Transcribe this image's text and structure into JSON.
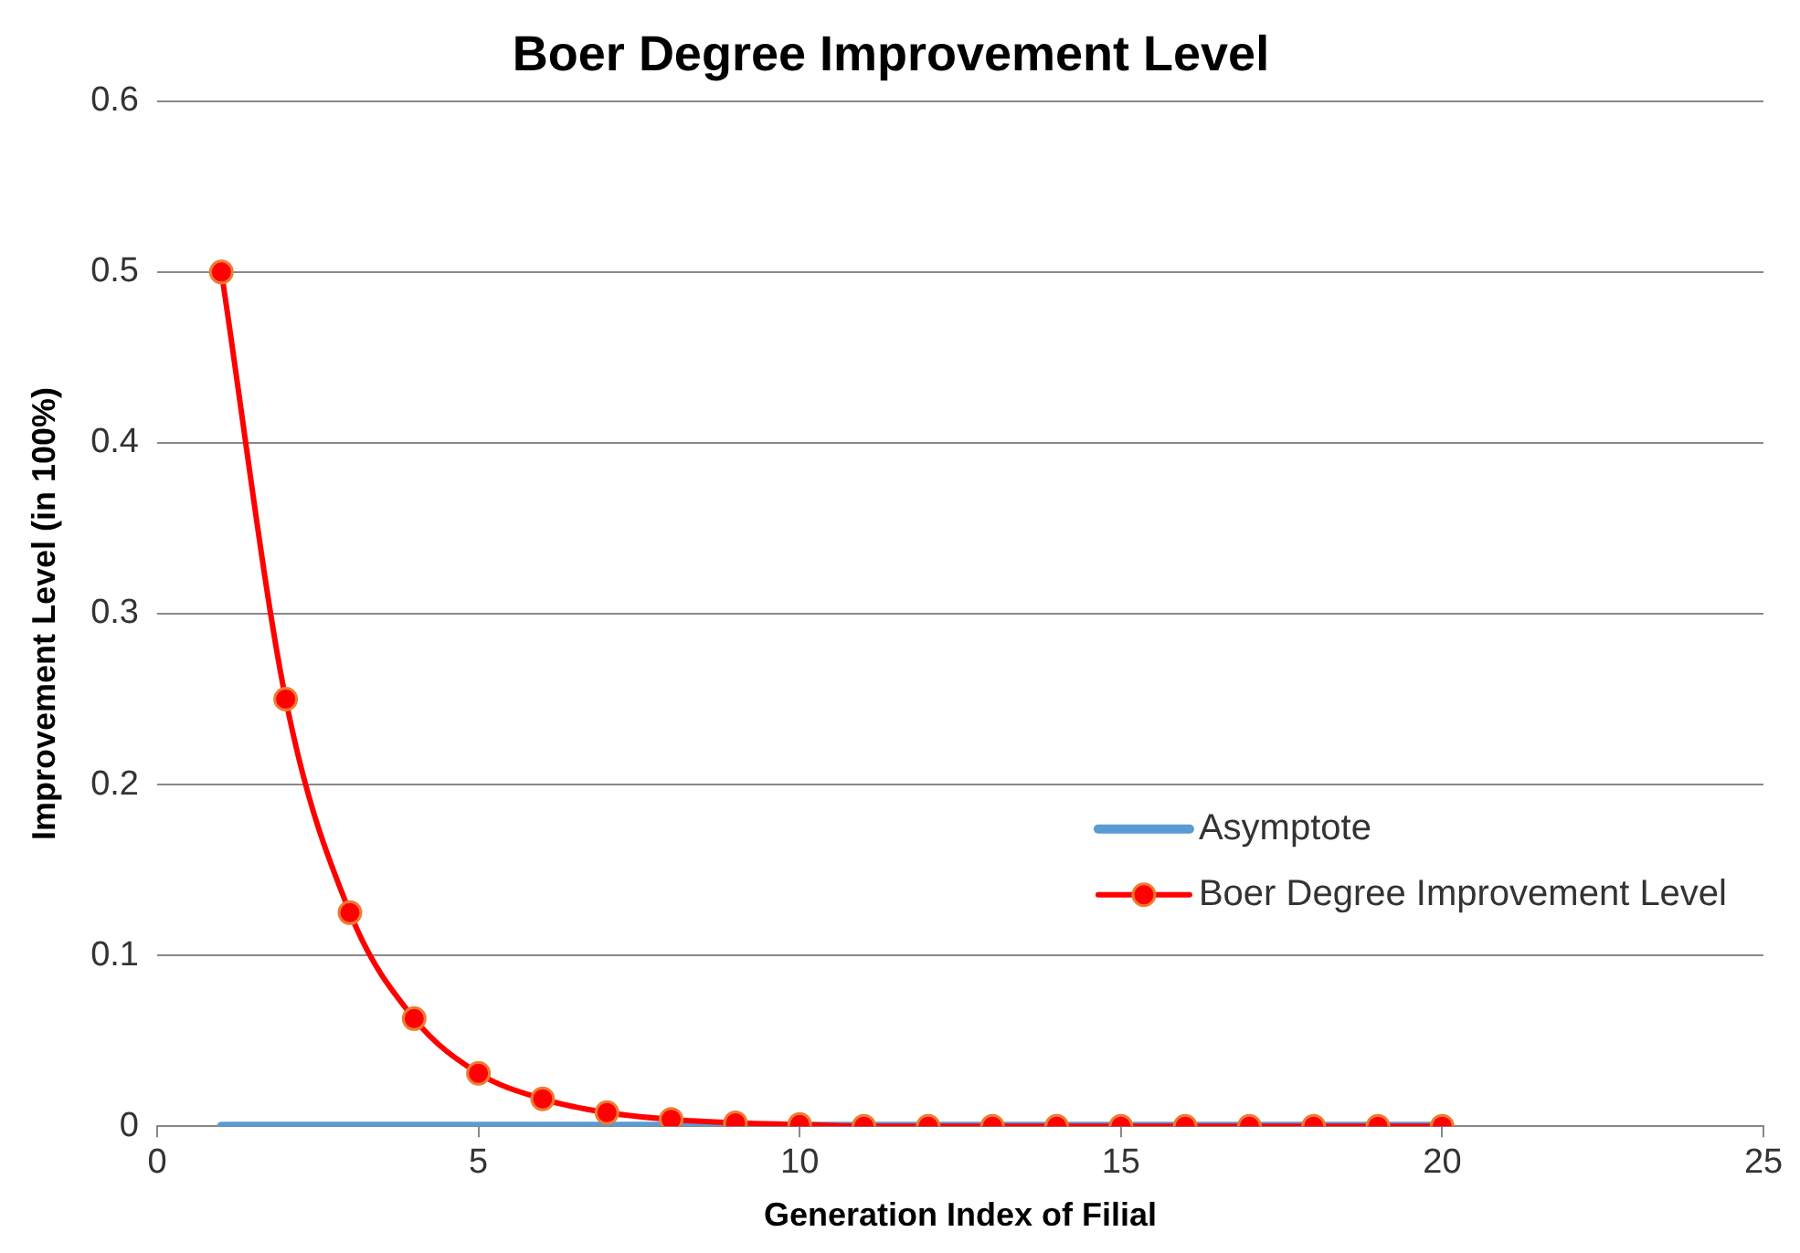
{
  "chart_data": {
    "type": "line",
    "title": "Boer Degree Improvement Level",
    "xlabel": "Generation Index of Filial",
    "ylabel": "Improvement Level (in 100%)",
    "x": [
      1,
      2,
      3,
      4,
      5,
      6,
      7,
      8,
      9,
      10,
      11,
      12,
      13,
      14,
      15,
      16,
      17,
      18,
      19,
      20
    ],
    "series": [
      {
        "name": "Asymptote",
        "color": "#5b9bd5",
        "marker": "none",
        "values": [
          0,
          0,
          0,
          0,
          0,
          0,
          0,
          0,
          0,
          0,
          0,
          0,
          0,
          0,
          0,
          0,
          0,
          0,
          0,
          0
        ]
      },
      {
        "name": "Boer Degree Improvement Level",
        "color": "#ff0000",
        "marker": "circle",
        "values": [
          0.5,
          0.25,
          0.125,
          0.063,
          0.031,
          0.016,
          0.008,
          0.004,
          0.002,
          0.001,
          0,
          0,
          0,
          0,
          0,
          0,
          0,
          0,
          0,
          0
        ]
      }
    ],
    "xlim": [
      0,
      25
    ],
    "xticks": [
      0,
      5,
      10,
      15,
      20,
      25
    ],
    "ylim": [
      0,
      0.6
    ],
    "yticks": [
      0,
      0.1,
      0.2,
      0.3,
      0.4,
      0.5,
      0.6
    ],
    "grid": "y",
    "legend": "right"
  }
}
